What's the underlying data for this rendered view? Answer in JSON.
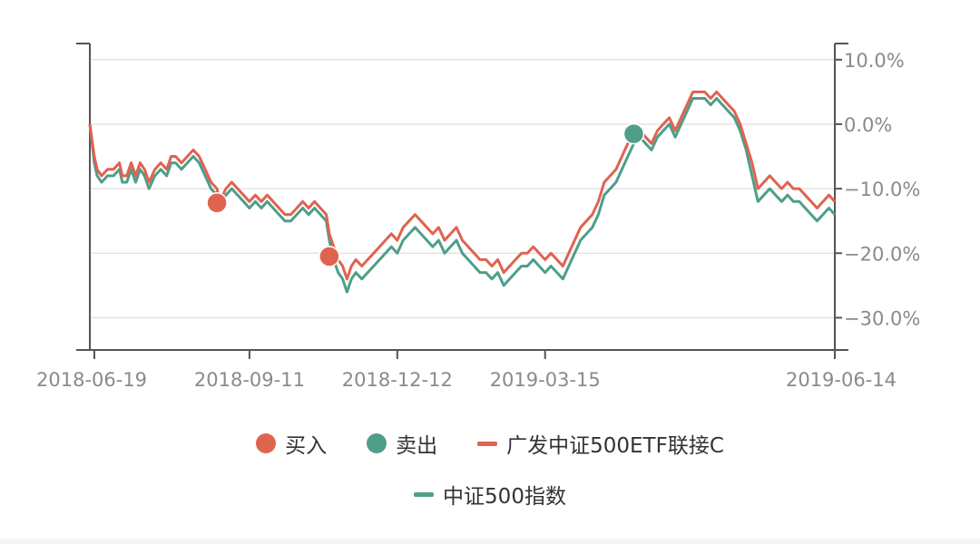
{
  "chart_data": {
    "type": "line",
    "y_unit": "%",
    "x_ticks": [
      "2018-06-19",
      "2018-09-11",
      "2018-12-12",
      "2019-03-15",
      "2019-06-14"
    ],
    "y_ticks": [
      "10.0%",
      "0.0%",
      "−10.0%",
      "−20.0%",
      "−30.0%"
    ],
    "ylim": [
      -35,
      12.5
    ],
    "grid": true,
    "legend_position": "bottom",
    "series": [
      {
        "name": "广发中证500ETF联接C",
        "color": "#e06350",
        "values": [
          [
            0,
            0
          ],
          [
            3,
            -5
          ],
          [
            5,
            -7
          ],
          [
            8,
            -8
          ],
          [
            12,
            -7
          ],
          [
            16,
            -7
          ],
          [
            20,
            -6
          ],
          [
            22,
            -8
          ],
          [
            25,
            -8
          ],
          [
            28,
            -6
          ],
          [
            31,
            -8
          ],
          [
            34,
            -6
          ],
          [
            37,
            -7
          ],
          [
            40,
            -9
          ],
          [
            44,
            -7
          ],
          [
            48,
            -6
          ],
          [
            52,
            -7
          ],
          [
            55,
            -5
          ],
          [
            58,
            -5
          ],
          [
            62,
            -6
          ],
          [
            66,
            -5
          ],
          [
            70,
            -4
          ],
          [
            74,
            -5
          ],
          [
            78,
            -7
          ],
          [
            82,
            -9
          ],
          [
            86,
            -10
          ],
          [
            88,
            -12
          ],
          [
            92,
            -10
          ],
          [
            96,
            -9
          ],
          [
            100,
            -10
          ],
          [
            104,
            -11
          ],
          [
            108,
            -12
          ],
          [
            112,
            -11
          ],
          [
            116,
            -12
          ],
          [
            120,
            -11
          ],
          [
            124,
            -12
          ],
          [
            128,
            -13
          ],
          [
            132,
            -14
          ],
          [
            136,
            -14
          ],
          [
            140,
            -13
          ],
          [
            144,
            -12
          ],
          [
            148,
            -13
          ],
          [
            152,
            -12
          ],
          [
            156,
            -13
          ],
          [
            160,
            -14
          ],
          [
            162,
            -17
          ],
          [
            165,
            -19
          ],
          [
            168,
            -21
          ],
          [
            171,
            -22
          ],
          [
            174,
            -24
          ],
          [
            177,
            -22
          ],
          [
            180,
            -21
          ],
          [
            184,
            -22
          ],
          [
            188,
            -21
          ],
          [
            192,
            -20
          ],
          [
            196,
            -19
          ],
          [
            200,
            -18
          ],
          [
            204,
            -17
          ],
          [
            208,
            -18
          ],
          [
            212,
            -16
          ],
          [
            216,
            -15
          ],
          [
            220,
            -14
          ],
          [
            224,
            -15
          ],
          [
            228,
            -16
          ],
          [
            232,
            -17
          ],
          [
            236,
            -16
          ],
          [
            240,
            -18
          ],
          [
            244,
            -17
          ],
          [
            248,
            -16
          ],
          [
            252,
            -18
          ],
          [
            256,
            -19
          ],
          [
            260,
            -20
          ],
          [
            264,
            -21
          ],
          [
            268,
            -21
          ],
          [
            272,
            -22
          ],
          [
            276,
            -21
          ],
          [
            280,
            -23
          ],
          [
            284,
            -22
          ],
          [
            288,
            -21
          ],
          [
            292,
            -20
          ],
          [
            296,
            -20
          ],
          [
            300,
            -19
          ],
          [
            304,
            -20
          ],
          [
            308,
            -21
          ],
          [
            312,
            -20
          ],
          [
            316,
            -21
          ],
          [
            320,
            -22
          ],
          [
            324,
            -20
          ],
          [
            328,
            -18
          ],
          [
            332,
            -16
          ],
          [
            336,
            -15
          ],
          [
            340,
            -14
          ],
          [
            344,
            -12
          ],
          [
            348,
            -9
          ],
          [
            352,
            -8
          ],
          [
            356,
            -7
          ],
          [
            360,
            -5
          ],
          [
            364,
            -3
          ],
          [
            368,
            -2
          ],
          [
            372,
            -1
          ],
          [
            376,
            -2
          ],
          [
            380,
            -3
          ],
          [
            384,
            -1
          ],
          [
            388,
            0
          ],
          [
            392,
            1
          ],
          [
            396,
            -1
          ],
          [
            400,
            1
          ],
          [
            404,
            3
          ],
          [
            408,
            5
          ],
          [
            412,
            5
          ],
          [
            416,
            5
          ],
          [
            420,
            4
          ],
          [
            424,
            5
          ],
          [
            428,
            4
          ],
          [
            432,
            3
          ],
          [
            436,
            2
          ],
          [
            440,
            0
          ],
          [
            444,
            -3
          ],
          [
            448,
            -6
          ],
          [
            452,
            -10
          ],
          [
            456,
            -9
          ],
          [
            460,
            -8
          ],
          [
            464,
            -9
          ],
          [
            468,
            -10
          ],
          [
            472,
            -9
          ],
          [
            476,
            -10
          ],
          [
            480,
            -10
          ],
          [
            484,
            -11
          ],
          [
            488,
            -12
          ],
          [
            492,
            -13
          ],
          [
            496,
            -12
          ],
          [
            500,
            -11
          ],
          [
            504,
            -12
          ]
        ]
      },
      {
        "name": "中证500指数",
        "color": "#4e9e8a",
        "values": [
          [
            0,
            0
          ],
          [
            3,
            -6
          ],
          [
            5,
            -8
          ],
          [
            8,
            -9
          ],
          [
            12,
            -8
          ],
          [
            16,
            -8
          ],
          [
            20,
            -7
          ],
          [
            22,
            -9
          ],
          [
            25,
            -9
          ],
          [
            28,
            -7
          ],
          [
            31,
            -9
          ],
          [
            34,
            -7
          ],
          [
            37,
            -8
          ],
          [
            40,
            -10
          ],
          [
            44,
            -8
          ],
          [
            48,
            -7
          ],
          [
            52,
            -8
          ],
          [
            55,
            -6
          ],
          [
            58,
            -6
          ],
          [
            62,
            -7
          ],
          [
            66,
            -6
          ],
          [
            70,
            -5
          ],
          [
            74,
            -6
          ],
          [
            78,
            -8
          ],
          [
            82,
            -10
          ],
          [
            86,
            -11
          ],
          [
            88,
            -13
          ],
          [
            92,
            -11
          ],
          [
            96,
            -10
          ],
          [
            100,
            -11
          ],
          [
            104,
            -12
          ],
          [
            108,
            -13
          ],
          [
            112,
            -12
          ],
          [
            116,
            -13
          ],
          [
            120,
            -12
          ],
          [
            124,
            -13
          ],
          [
            128,
            -14
          ],
          [
            132,
            -15
          ],
          [
            136,
            -15
          ],
          [
            140,
            -14
          ],
          [
            144,
            -13
          ],
          [
            148,
            -14
          ],
          [
            152,
            -13
          ],
          [
            156,
            -14
          ],
          [
            160,
            -15
          ],
          [
            162,
            -18
          ],
          [
            165,
            -21
          ],
          [
            168,
            -23
          ],
          [
            171,
            -24
          ],
          [
            174,
            -26
          ],
          [
            177,
            -24
          ],
          [
            180,
            -23
          ],
          [
            184,
            -24
          ],
          [
            188,
            -23
          ],
          [
            192,
            -22
          ],
          [
            196,
            -21
          ],
          [
            200,
            -20
          ],
          [
            204,
            -19
          ],
          [
            208,
            -20
          ],
          [
            212,
            -18
          ],
          [
            216,
            -17
          ],
          [
            220,
            -16
          ],
          [
            224,
            -17
          ],
          [
            228,
            -18
          ],
          [
            232,
            -19
          ],
          [
            236,
            -18
          ],
          [
            240,
            -20
          ],
          [
            244,
            -19
          ],
          [
            248,
            -18
          ],
          [
            252,
            -20
          ],
          [
            256,
            -21
          ],
          [
            260,
            -22
          ],
          [
            264,
            -23
          ],
          [
            268,
            -23
          ],
          [
            272,
            -24
          ],
          [
            276,
            -23
          ],
          [
            280,
            -25
          ],
          [
            284,
            -24
          ],
          [
            288,
            -23
          ],
          [
            292,
            -22
          ],
          [
            296,
            -22
          ],
          [
            300,
            -21
          ],
          [
            304,
            -22
          ],
          [
            308,
            -23
          ],
          [
            312,
            -22
          ],
          [
            316,
            -23
          ],
          [
            320,
            -24
          ],
          [
            324,
            -22
          ],
          [
            328,
            -20
          ],
          [
            332,
            -18
          ],
          [
            336,
            -17
          ],
          [
            340,
            -16
          ],
          [
            344,
            -14
          ],
          [
            348,
            -11
          ],
          [
            352,
            -10
          ],
          [
            356,
            -9
          ],
          [
            360,
            -7
          ],
          [
            364,
            -5
          ],
          [
            368,
            -3
          ],
          [
            372,
            -2
          ],
          [
            376,
            -3
          ],
          [
            380,
            -4
          ],
          [
            384,
            -2
          ],
          [
            388,
            -1
          ],
          [
            392,
            0
          ],
          [
            396,
            -2
          ],
          [
            400,
            0
          ],
          [
            404,
            2
          ],
          [
            408,
            4
          ],
          [
            412,
            4
          ],
          [
            416,
            4
          ],
          [
            420,
            3
          ],
          [
            424,
            4
          ],
          [
            428,
            3
          ],
          [
            432,
            2
          ],
          [
            436,
            1
          ],
          [
            440,
            -1
          ],
          [
            444,
            -4
          ],
          [
            448,
            -8
          ],
          [
            452,
            -12
          ],
          [
            456,
            -11
          ],
          [
            460,
            -10
          ],
          [
            464,
            -11
          ],
          [
            468,
            -12
          ],
          [
            472,
            -11
          ],
          [
            476,
            -12
          ],
          [
            480,
            -12
          ],
          [
            484,
            -13
          ],
          [
            488,
            -14
          ],
          [
            492,
            -15
          ],
          [
            496,
            -14
          ],
          [
            500,
            -13
          ],
          [
            504,
            -14
          ]
        ]
      }
    ],
    "markers": [
      {
        "name": "买入",
        "color": "#e06350",
        "points": [
          [
            86,
            -12.2
          ],
          [
            162,
            -20.5
          ]
        ]
      },
      {
        "name": "卖出",
        "color": "#4e9e8a",
        "points": [
          [
            368,
            -1.5
          ]
        ]
      }
    ]
  },
  "legend": {
    "buy": "买入",
    "sell": "卖出",
    "fund": "广发中证500ETF联接C",
    "index": "中证500指数"
  },
  "colors": {
    "buy": "#e06350",
    "sell": "#4e9e8a",
    "fund": "#e06350",
    "index": "#4e9e8a"
  }
}
